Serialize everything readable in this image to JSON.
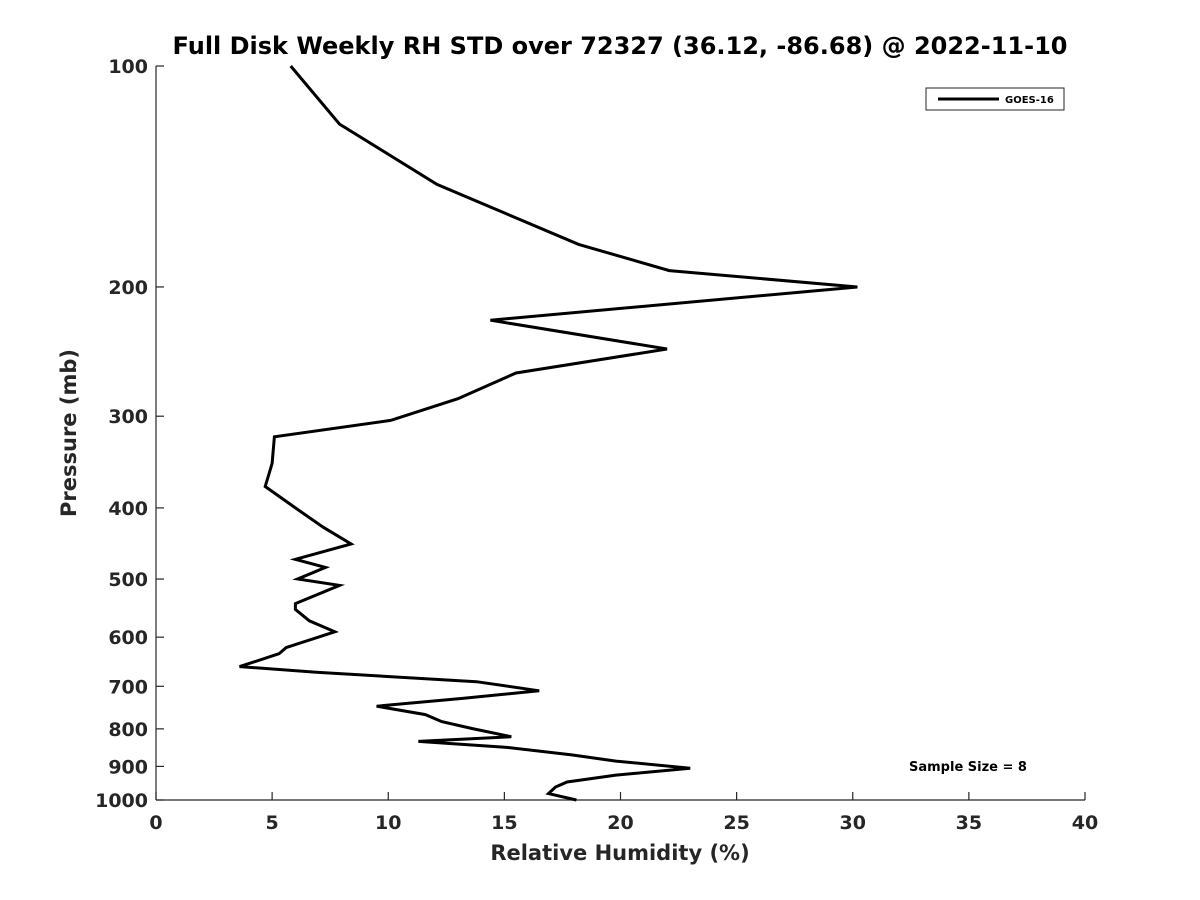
{
  "chart_data": {
    "type": "line",
    "title": "Full Disk Weekly RH STD over 72327 (36.12, -86.68) @ 2022-11-10",
    "xlabel": "Relative Humidity (%)",
    "ylabel": "Pressure (mb)",
    "xlim": [
      0,
      40
    ],
    "ylim": [
      100,
      1000
    ],
    "yscale": "log",
    "y_reversed": true,
    "xticks": [
      0,
      5,
      10,
      15,
      20,
      25,
      30,
      35,
      40
    ],
    "yticks": [
      100,
      200,
      300,
      400,
      500,
      600,
      700,
      800,
      900,
      1000
    ],
    "grid": false,
    "legend_position": "top-right",
    "annotation": "Sample Size = 8",
    "series": [
      {
        "name": "GOES-16",
        "color": "#000000",
        "points": [
          [
            5.8,
            100
          ],
          [
            7.9,
            120
          ],
          [
            12.1,
            145
          ],
          [
            18.2,
            175
          ],
          [
            22.1,
            190
          ],
          [
            30.2,
            200
          ],
          [
            14.4,
            222
          ],
          [
            22.0,
            243
          ],
          [
            15.5,
            262
          ],
          [
            13.0,
            284
          ],
          [
            10.1,
            304
          ],
          [
            5.1,
            320
          ],
          [
            5.0,
            348
          ],
          [
            4.7,
            374
          ],
          [
            6.0,
            400
          ],
          [
            7.2,
            425
          ],
          [
            8.4,
            448
          ],
          [
            6.0,
            470
          ],
          [
            7.3,
            482
          ],
          [
            6.1,
            500
          ],
          [
            7.9,
            510
          ],
          [
            6.0,
            540
          ],
          [
            6.0,
            550
          ],
          [
            6.6,
            570
          ],
          [
            7.7,
            590
          ],
          [
            5.6,
            620
          ],
          [
            5.3,
            632
          ],
          [
            3.6,
            658
          ],
          [
            6.9,
            670
          ],
          [
            13.8,
            690
          ],
          [
            16.5,
            710
          ],
          [
            13.2,
            727
          ],
          [
            9.5,
            745
          ],
          [
            11.6,
            765
          ],
          [
            12.3,
            782
          ],
          [
            13.6,
            799
          ],
          [
            15.3,
            820
          ],
          [
            11.3,
            832
          ],
          [
            15.1,
            848
          ],
          [
            17.9,
            868
          ],
          [
            19.8,
            885
          ],
          [
            23.0,
            905
          ],
          [
            19.8,
            925
          ],
          [
            17.7,
            945
          ],
          [
            17.2,
            960
          ],
          [
            16.9,
            980
          ],
          [
            18.1,
            1000
          ]
        ]
      }
    ]
  }
}
